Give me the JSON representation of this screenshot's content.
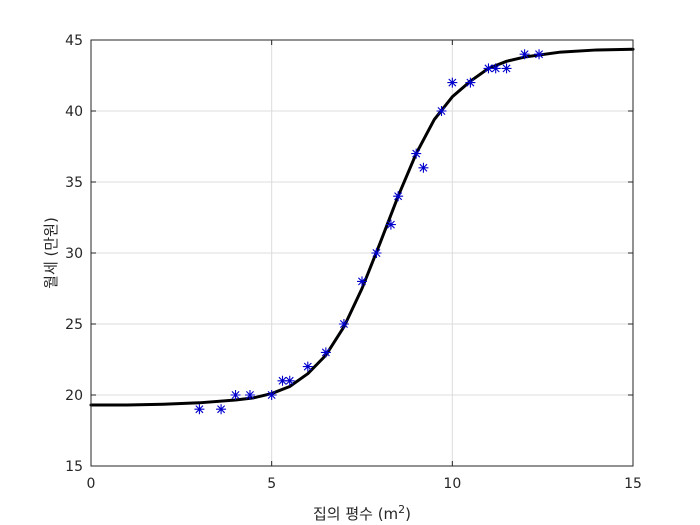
{
  "chart_data": {
    "type": "scatter",
    "title": "",
    "xlabel": "집의 평수 (m²)",
    "xlabel_base": "집의 평수 (m",
    "xlabel_sup": "2",
    "xlabel_close": ")",
    "ylabel": "월세 (만원)",
    "xlim": [
      0,
      15
    ],
    "ylim": [
      15,
      45
    ],
    "xticks": [
      "0",
      "5",
      "10",
      "15"
    ],
    "yticks": [
      "15",
      "20",
      "25",
      "30",
      "35",
      "40",
      "45"
    ],
    "grid": true,
    "series": [
      {
        "kind": "scatter",
        "marker": "asterisk",
        "color": "#0000cd",
        "x": [
          3.0,
          3.6,
          4.0,
          4.4,
          5.0,
          5.3,
          5.5,
          6.0,
          6.5,
          7.0,
          7.5,
          7.9,
          8.3,
          8.5,
          9.0,
          9.2,
          9.7,
          10.0,
          10.5,
          11.0,
          11.2,
          11.5,
          12.0,
          12.4
        ],
        "y": [
          19,
          19,
          20,
          20,
          20,
          21,
          21,
          22,
          23,
          25,
          28,
          30,
          32,
          34,
          37,
          36,
          40,
          42,
          42,
          43,
          43,
          43,
          44,
          44
        ]
      },
      {
        "kind": "line",
        "color": "#000000",
        "x": [
          0,
          1,
          2,
          3,
          4,
          4.5,
          5,
          5.5,
          6,
          6.5,
          7,
          7.5,
          8,
          8.5,
          9,
          9.5,
          10,
          10.5,
          11,
          11.5,
          12,
          13,
          14,
          15
        ],
        "y": [
          19.3,
          19.3,
          19.35,
          19.45,
          19.65,
          19.8,
          20.1,
          20.6,
          21.5,
          22.8,
          24.8,
          27.5,
          30.7,
          34.0,
          37.0,
          39.4,
          41.0,
          42.1,
          43.0,
          43.5,
          43.8,
          44.15,
          44.3,
          44.35
        ]
      }
    ]
  }
}
